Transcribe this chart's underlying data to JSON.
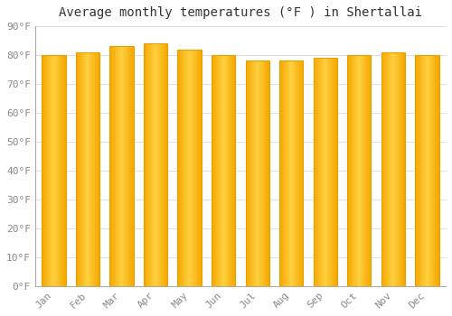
{
  "title": "Average monthly temperatures (°F ) in Shertallai",
  "months": [
    "Jan",
    "Feb",
    "Mar",
    "Apr",
    "May",
    "Jun",
    "Jul",
    "Aug",
    "Sep",
    "Oct",
    "Nov",
    "Dec"
  ],
  "values": [
    80,
    81,
    83,
    84,
    82,
    80,
    78,
    78,
    79,
    80,
    81,
    80
  ],
  "bar_edge_color": "#E8A000",
  "bar_center_color": "#FFD040",
  "bar_outer_color": "#F5A800",
  "background_color": "#FFFFFF",
  "grid_color": "#E0E0E0",
  "ylim": [
    0,
    90
  ],
  "yticks": [
    0,
    10,
    20,
    30,
    40,
    50,
    60,
    70,
    80,
    90
  ],
  "ytick_labels": [
    "0°F",
    "10°F",
    "20°F",
    "30°F",
    "40°F",
    "50°F",
    "60°F",
    "70°F",
    "80°F",
    "90°F"
  ],
  "title_fontsize": 10,
  "tick_fontsize": 8,
  "font_family": "monospace",
  "bar_width": 0.7,
  "figsize": [
    5.0,
    3.5
  ],
  "dpi": 100
}
